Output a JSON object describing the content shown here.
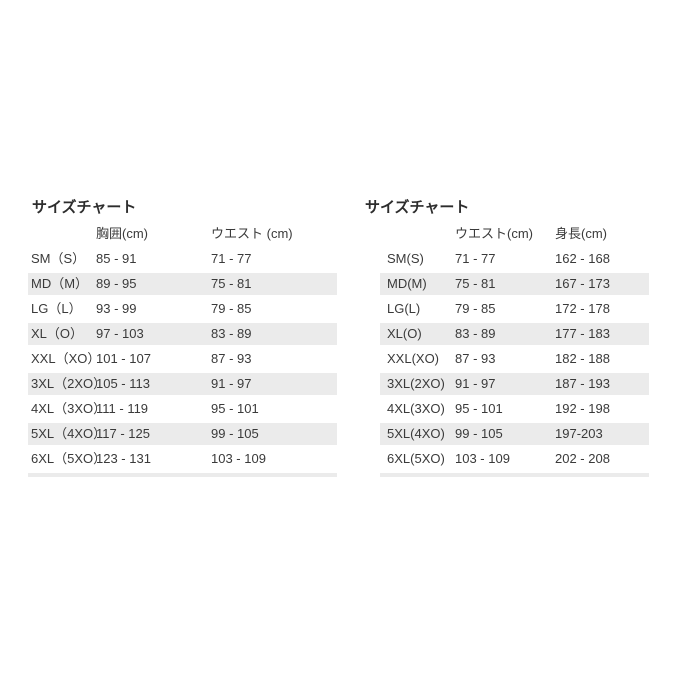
{
  "page": {
    "background": "#ffffff",
    "description": "Two size chart tables"
  },
  "colors": {
    "stripe": "#ebebeb",
    "text": "#3a3a3a",
    "title": "#2d2d2d",
    "background": "#ffffff"
  },
  "tables": [
    {
      "title": "サイズチャート",
      "columns": [
        "",
        "胸囲(cm)",
        "ウエスト (cm)"
      ],
      "rows": [
        [
          "SM（S）",
          "85 - 91",
          "71 - 77"
        ],
        [
          "MD（M）",
          "89 - 95",
          "75 - 81"
        ],
        [
          "LG（L）",
          "93 - 99",
          "79 - 85"
        ],
        [
          "XL（O）",
          "97 - 103",
          "83 - 89"
        ],
        [
          "XXL（XO）",
          "101 - 107",
          "87 - 93"
        ],
        [
          "3XL（2XO）",
          "105 - 113",
          "91 - 97"
        ],
        [
          "4XL（3XO）",
          "111 - 119",
          "95 - 101"
        ],
        [
          "5XL（4XO）",
          "117 - 125",
          "99 - 105"
        ],
        [
          "6XL（5XO）",
          "123 - 131",
          "103 - 109"
        ]
      ]
    },
    {
      "title": "サイズチャート",
      "columns": [
        "",
        "ウエスト(cm)",
        "身長(cm)"
      ],
      "rows": [
        [
          "SM(S)",
          "71 - 77",
          "162 - 168"
        ],
        [
          "MD(M)",
          "75 - 81",
          "167 - 173"
        ],
        [
          "LG(L)",
          "79 - 85",
          "172 - 178"
        ],
        [
          "XL(O)",
          "83 - 89",
          "177 - 183"
        ],
        [
          "XXL(XO)",
          "87 - 93",
          "182 - 188"
        ],
        [
          "3XL(2XO)",
          "91 - 97",
          "187 - 193"
        ],
        [
          "4XL(3XO)",
          "95 - 101",
          "192 - 198"
        ],
        [
          "5XL(4XO)",
          "99 - 105",
          "197-203"
        ],
        [
          "6XL(5XO)",
          "103 - 109",
          "202 - 208"
        ]
      ]
    }
  ]
}
